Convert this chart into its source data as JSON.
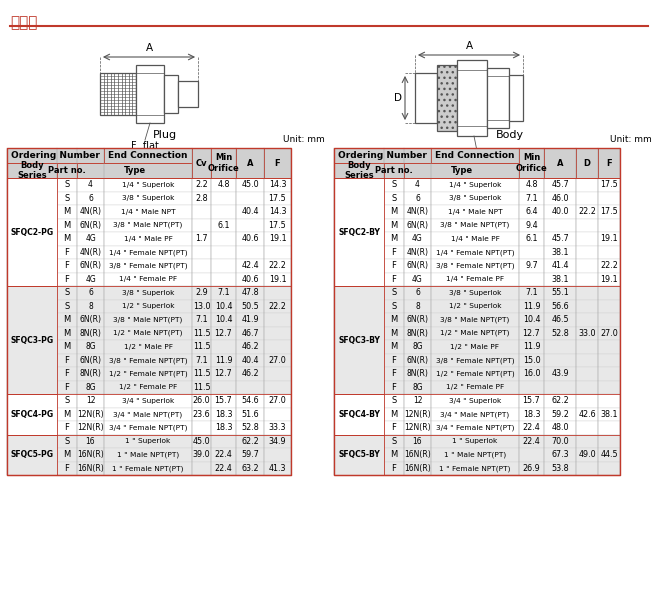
{
  "title": "尺寸表",
  "plug_label": "Plug",
  "body_label": "Body",
  "unit_label": "Unit: mm",
  "header_bg": "#d0d0d0",
  "alt_bg": "#e8e8e8",
  "white_bg": "#ffffff",
  "border_col": "#c0392b",
  "plug_rows": [
    [
      "SFQC2-PG",
      "S",
      "4",
      "1/4 \" Superlok",
      "2.2",
      "4.8",
      "45.0",
      "14.3"
    ],
    [
      "",
      "S",
      "6",
      "3/8 \" Superlok",
      "2.8",
      "",
      "",
      "17.5"
    ],
    [
      "",
      "M",
      "4N(R)",
      "1/4 \" Male NPT",
      "",
      "",
      "40.4",
      "14.3"
    ],
    [
      "",
      "M",
      "6N(R)",
      "3/8 \" Male NPT(PT)",
      "",
      "6.1",
      "",
      "17.5"
    ],
    [
      "",
      "M",
      "4G",
      "1/4 \" Male PF",
      "1.7",
      "",
      "40.6",
      "19.1"
    ],
    [
      "",
      "F",
      "4N(R)",
      "1/4 \" Female NPT(PT)",
      "",
      "",
      "",
      ""
    ],
    [
      "",
      "F",
      "6N(R)",
      "3/8 \" Female NPT(PT)",
      "",
      "",
      "42.4",
      "22.2"
    ],
    [
      "",
      "F",
      "4G",
      "1/4 \" Female PF",
      "",
      "",
      "40.6",
      "19.1"
    ],
    [
      "SFQC3-PG",
      "S",
      "6",
      "3/8 \" Superlok",
      "2.9",
      "7.1",
      "47.8",
      ""
    ],
    [
      "",
      "S",
      "8",
      "1/2 \" Superlok",
      "13.0",
      "10.4",
      "50.5",
      "22.2"
    ],
    [
      "",
      "M",
      "6N(R)",
      "3/8 \" Male NPT(PT)",
      "7.1",
      "10.4",
      "41.9",
      ""
    ],
    [
      "",
      "M",
      "8N(R)",
      "1/2 \" Male NPT(PT)",
      "11.5",
      "12.7",
      "46.7",
      ""
    ],
    [
      "",
      "M",
      "8G",
      "1/2 \" Male PF",
      "11.5",
      "",
      "46.2",
      ""
    ],
    [
      "",
      "F",
      "6N(R)",
      "3/8 \" Female NPT(PT)",
      "7.1",
      "11.9",
      "40.4",
      "27.0"
    ],
    [
      "",
      "F",
      "8N(R)",
      "1/2 \" Female NPT(PT)",
      "11.5",
      "12.7",
      "46.2",
      ""
    ],
    [
      "",
      "F",
      "8G",
      "1/2 \" Female PF",
      "11.5",
      "",
      "",
      ""
    ],
    [
      "SFQC4-PG",
      "S",
      "12",
      "3/4 \" Superlok",
      "26.0",
      "15.7",
      "54.6",
      "27.0"
    ],
    [
      "",
      "M",
      "12N(R)",
      "3/4 \" Male NPT(PT)",
      "23.6",
      "18.3",
      "51.6",
      ""
    ],
    [
      "",
      "F",
      "12N(R)",
      "3/4 \" Female NPT(PT)",
      "",
      "18.3",
      "52.8",
      "33.3"
    ],
    [
      "SFQC5-PG",
      "S",
      "16",
      "1 \" Superlok",
      "45.0",
      "",
      "62.2",
      "34.9"
    ],
    [
      "",
      "M",
      "16N(R)",
      "1 \" Male NPT(PT)",
      "39.0",
      "22.4",
      "59.7",
      ""
    ],
    [
      "",
      "F",
      "16N(R)",
      "1 \" Female NPT(PT)",
      "",
      "22.4",
      "63.2",
      "41.3"
    ]
  ],
  "body_rows": [
    [
      "SFQC2-BY",
      "S",
      "4",
      "1/4 \" Superlok",
      "4.8",
      "45.7",
      "",
      "17.5"
    ],
    [
      "",
      "S",
      "6",
      "3/8 \" Superlok",
      "7.1",
      "46.0",
      "",
      ""
    ],
    [
      "",
      "M",
      "4N(R)",
      "1/4 \" Male NPT",
      "6.4",
      "40.0",
      "22.2",
      "17.5"
    ],
    [
      "",
      "M",
      "6N(R)",
      "3/8 \" Male NPT(PT)",
      "9.4",
      "",
      "",
      ""
    ],
    [
      "",
      "M",
      "4G",
      "1/4 \" Male PF",
      "6.1",
      "45.7",
      "",
      "19.1"
    ],
    [
      "",
      "F",
      "4N(R)",
      "1/4 \" Female NPT(PT)",
      "",
      "38.1",
      "",
      ""
    ],
    [
      "",
      "F",
      "6N(R)",
      "3/8 \" Female NPT(PT)",
      "9.7",
      "41.4",
      "",
      "22.2"
    ],
    [
      "",
      "F",
      "4G",
      "1/4 \" Female PF",
      "",
      "38.1",
      "",
      "19.1"
    ],
    [
      "SFQC3-BY",
      "S",
      "6",
      "3/8 \" Superlok",
      "7.1",
      "55.1",
      "",
      ""
    ],
    [
      "",
      "S",
      "8",
      "1/2 \" Superlok",
      "11.9",
      "56.6",
      "",
      ""
    ],
    [
      "",
      "M",
      "6N(R)",
      "3/8 \" Male NPT(PT)",
      "10.4",
      "46.5",
      "",
      ""
    ],
    [
      "",
      "M",
      "8N(R)",
      "1/2 \" Male NPT(PT)",
      "12.7",
      "52.8",
      "33.0",
      "27.0"
    ],
    [
      "",
      "M",
      "8G",
      "1/2 \" Male PF",
      "11.9",
      "",
      "",
      ""
    ],
    [
      "",
      "F",
      "6N(R)",
      "3/8 \" Female NPT(PT)",
      "15.0",
      "",
      "",
      ""
    ],
    [
      "",
      "F",
      "8N(R)",
      "1/2 \" Female NPT(PT)",
      "16.0",
      "43.9",
      "",
      ""
    ],
    [
      "",
      "F",
      "8G",
      "1/2 \" Female PF",
      "",
      "",
      "",
      ""
    ],
    [
      "SFQC4-BY",
      "S",
      "12",
      "3/4 \" Superlok",
      "15.7",
      "62.2",
      "",
      ""
    ],
    [
      "",
      "M",
      "12N(R)",
      "3/4 \" Male NPT(PT)",
      "18.3",
      "59.2",
      "42.6",
      "38.1"
    ],
    [
      "",
      "F",
      "12N(R)",
      "3/4 \" Female NPT(PT)",
      "22.4",
      "48.0",
      "",
      ""
    ],
    [
      "SFQC5-BY",
      "S",
      "16",
      "1 \" Superlok",
      "22.4",
      "70.0",
      "",
      ""
    ],
    [
      "",
      "M",
      "16N(R)",
      "1 \" Male NPT(PT)",
      "",
      "67.3",
      "49.0",
      "44.5"
    ],
    [
      "",
      "F",
      "16N(R)",
      "1 \" Female NPT(PT)",
      "26.9",
      "53.8",
      "",
      ""
    ]
  ]
}
